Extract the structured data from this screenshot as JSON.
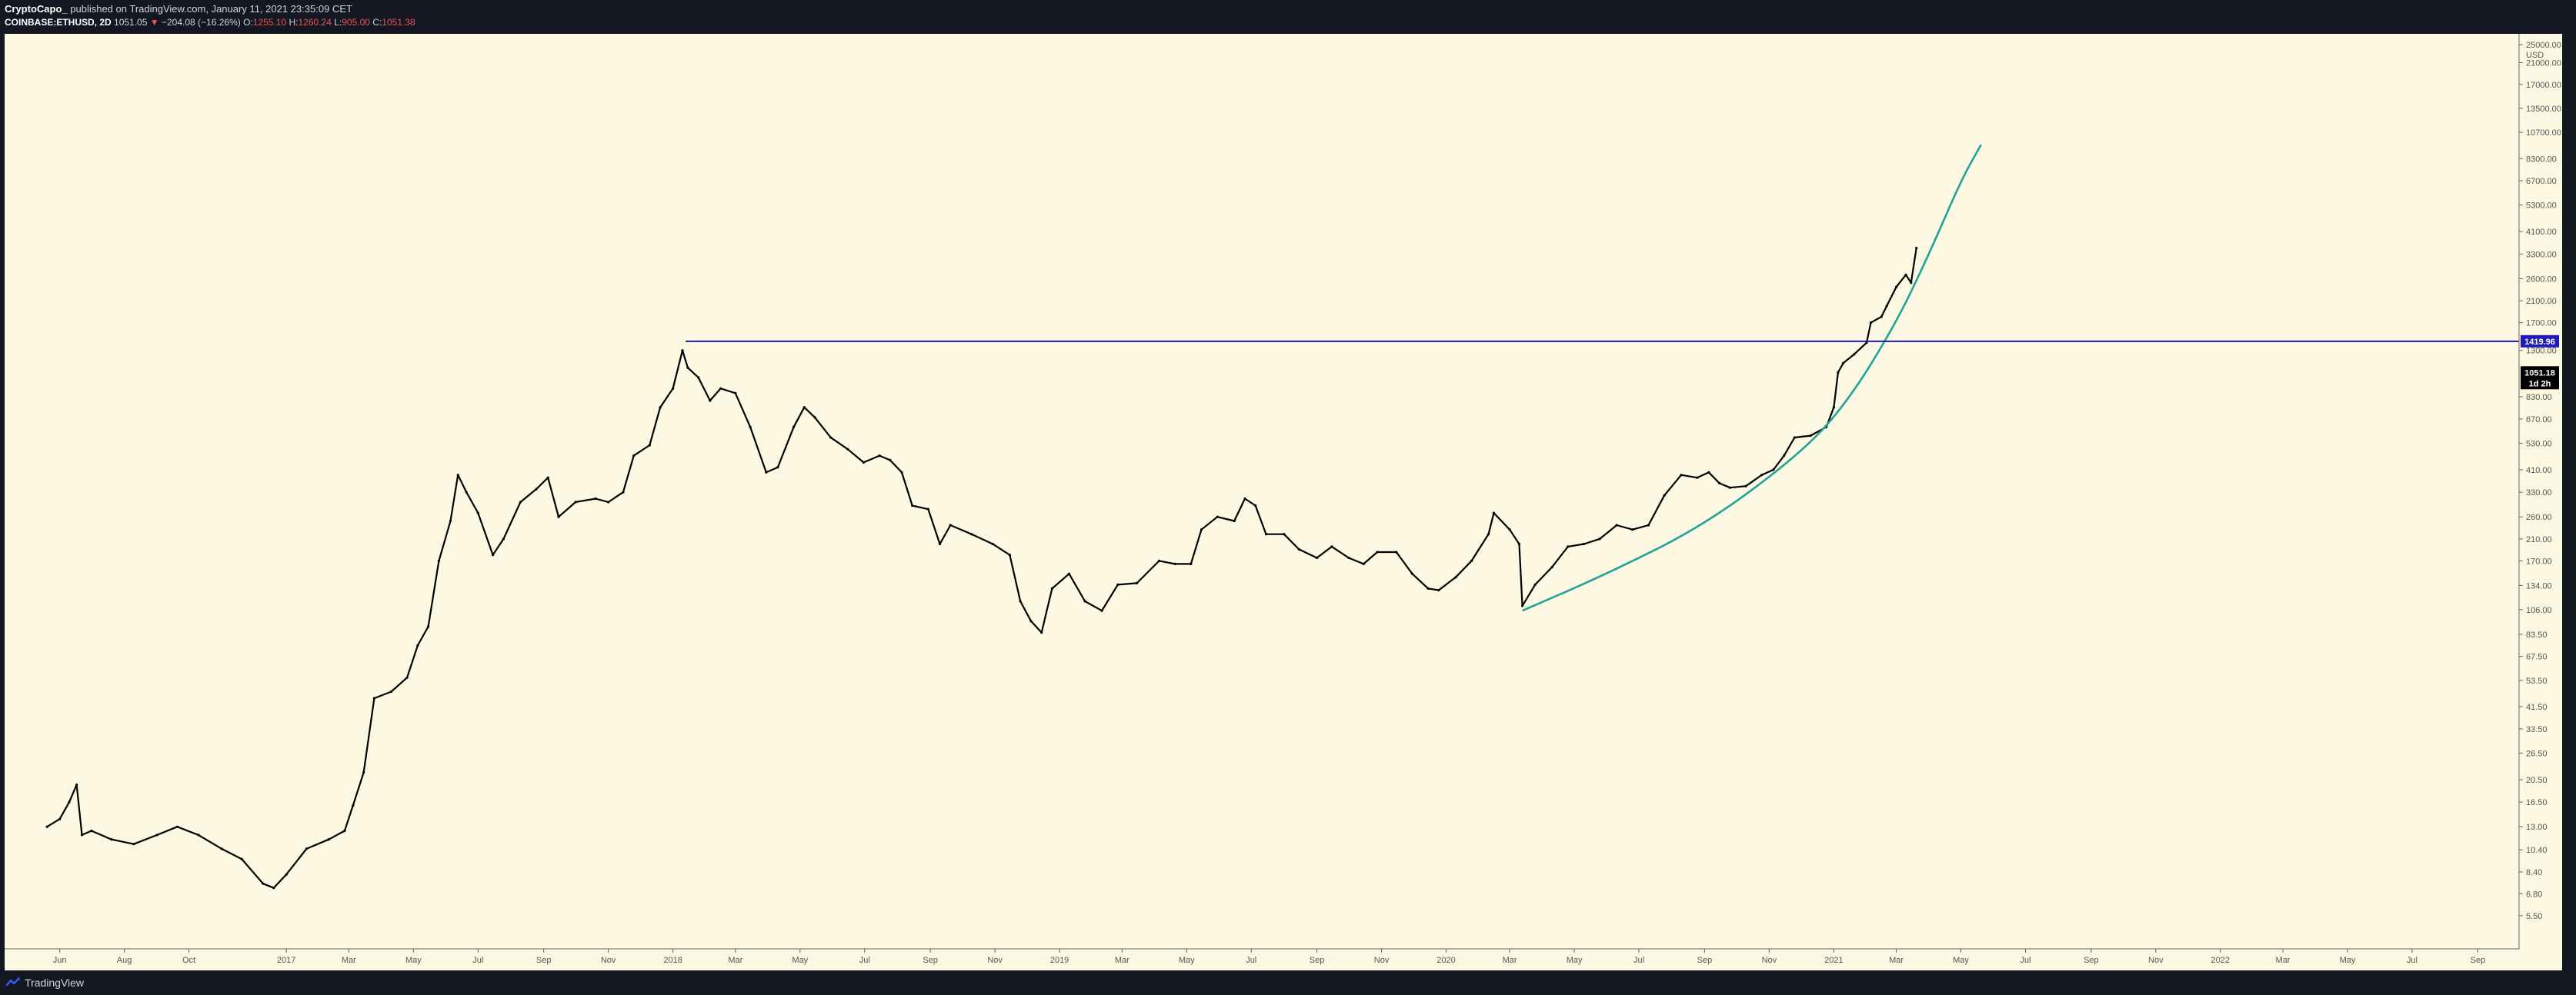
{
  "header": {
    "author": "CryptoCapo_",
    "published": "published on TradingView.com, January 11, 2021 23:35:09 CET",
    "symbol": "COINBASE:ETHUSD, 2D",
    "last": "1051.05",
    "change": "−204.08 (−16.26%)",
    "o_label": "O:",
    "o_value": "1255.10",
    "h_label": "H:",
    "h_value": "1260.24",
    "l_label": "L:",
    "l_value": "905.00",
    "c_label": "C:",
    "c_value": "1051.38"
  },
  "footer": {
    "brand": "TradingView"
  },
  "colors": {
    "background": "#fdf8e1",
    "candle": "#000000",
    "resistance": "#1f1ab8",
    "curve": "#22a39a",
    "price_badge": "#000000",
    "level_badge": "#1f1ab8"
  },
  "chart_data": {
    "type": "line",
    "scale": "log",
    "y_unit": "USD",
    "price_ticks": [
      25000,
      21000,
      17000,
      13500,
      10700,
      8300,
      6700,
      5300,
      4100,
      3300,
      2600,
      2100,
      1700,
      1300,
      830,
      670,
      530,
      410,
      330,
      260,
      210,
      170,
      134,
      106,
      83.5,
      67.5,
      53.5,
      41.5,
      33.5,
      26.5,
      20.5,
      16.5,
      13.0,
      10.4,
      8.4,
      6.8,
      5.5
    ],
    "price_tick_labels": [
      "25000.00",
      "21000.00",
      "17000.00",
      "13500.00",
      "10700.00",
      "8300.00",
      "6700.00",
      "5300.00",
      "4100.00",
      "3300.00",
      "2600.00",
      "2100.00",
      "1700.00",
      "1300.00",
      "830.00",
      "670.00",
      "530.00",
      "410.00",
      "330.00",
      "260.00",
      "210.00",
      "170.00",
      "134.00",
      "106.00",
      "83.50",
      "67.50",
      "53.50",
      "41.50",
      "33.50",
      "26.50",
      "20.50",
      "16.50",
      "13.00",
      "10.40",
      "8.40",
      "6.80",
      "5.50"
    ],
    "time_ticks": [
      {
        "label": "Jun",
        "date": "2016-06-01"
      },
      {
        "label": "Aug",
        "date": "2016-08-01"
      },
      {
        "label": "Oct",
        "date": "2016-10-01"
      },
      {
        "label": "2017",
        "date": "2017-01-01"
      },
      {
        "label": "Mar",
        "date": "2017-03-01"
      },
      {
        "label": "May",
        "date": "2017-05-01"
      },
      {
        "label": "Jul",
        "date": "2017-07-01"
      },
      {
        "label": "Sep",
        "date": "2017-09-01"
      },
      {
        "label": "Nov",
        "date": "2017-11-01"
      },
      {
        "label": "2018",
        "date": "2018-01-01"
      },
      {
        "label": "Mar",
        "date": "2018-03-01"
      },
      {
        "label": "May",
        "date": "2018-05-01"
      },
      {
        "label": "Jul",
        "date": "2018-07-01"
      },
      {
        "label": "Sep",
        "date": "2018-09-01"
      },
      {
        "label": "Nov",
        "date": "2018-11-01"
      },
      {
        "label": "2019",
        "date": "2019-01-01"
      },
      {
        "label": "Mar",
        "date": "2019-03-01"
      },
      {
        "label": "May",
        "date": "2019-05-01"
      },
      {
        "label": "Jul",
        "date": "2019-07-01"
      },
      {
        "label": "Sep",
        "date": "2019-09-01"
      },
      {
        "label": "Nov",
        "date": "2019-11-01"
      },
      {
        "label": "2020",
        "date": "2020-01-01"
      },
      {
        "label": "Mar",
        "date": "2020-03-01"
      },
      {
        "label": "May",
        "date": "2020-05-01"
      },
      {
        "label": "Jul",
        "date": "2020-07-01"
      },
      {
        "label": "Sep",
        "date": "2020-09-01"
      },
      {
        "label": "Nov",
        "date": "2020-11-01"
      },
      {
        "label": "2021",
        "date": "2021-01-01"
      },
      {
        "label": "Mar",
        "date": "2021-03-01"
      },
      {
        "label": "May",
        "date": "2021-05-01"
      },
      {
        "label": "Jul",
        "date": "2021-07-01"
      },
      {
        "label": "Sep",
        "date": "2021-09-01"
      },
      {
        "label": "Nov",
        "date": "2021-11-01"
      },
      {
        "label": "2022",
        "date": "2022-01-01"
      },
      {
        "label": "Mar",
        "date": "2022-03-01"
      },
      {
        "label": "May",
        "date": "2022-05-01"
      },
      {
        "label": "Jul",
        "date": "2022-07-01"
      },
      {
        "label": "Sep",
        "date": "2022-09-01"
      }
    ],
    "series": [
      {
        "points": [
          [
            "2016-05-20",
            13.0
          ],
          [
            "2016-06-01",
            14.0
          ],
          [
            "2016-06-10",
            16.5
          ],
          [
            "2016-06-17",
            19.5
          ],
          [
            "2016-06-22",
            12.0
          ],
          [
            "2016-07-01",
            12.5
          ],
          [
            "2016-07-20",
            11.5
          ],
          [
            "2016-08-10",
            11.0
          ],
          [
            "2016-09-01",
            12.0
          ],
          [
            "2016-09-20",
            13.0
          ],
          [
            "2016-10-10",
            12.0
          ],
          [
            "2016-11-01",
            10.5
          ],
          [
            "2016-11-20",
            9.5
          ],
          [
            "2016-12-10",
            7.5
          ],
          [
            "2016-12-20",
            7.2
          ],
          [
            "2017-01-01",
            8.2
          ],
          [
            "2017-01-20",
            10.5
          ],
          [
            "2017-02-10",
            11.5
          ],
          [
            "2017-02-25",
            12.5
          ],
          [
            "2017-03-05",
            16.0
          ],
          [
            "2017-03-15",
            22.0
          ],
          [
            "2017-03-25",
            45.0
          ],
          [
            "2017-04-10",
            48.0
          ],
          [
            "2017-04-25",
            55.0
          ],
          [
            "2017-05-05",
            75.0
          ],
          [
            "2017-05-15",
            90.0
          ],
          [
            "2017-05-25",
            170.0
          ],
          [
            "2017-06-05",
            250.0
          ],
          [
            "2017-06-12",
            390.0
          ],
          [
            "2017-06-20",
            330.0
          ],
          [
            "2017-07-01",
            270.0
          ],
          [
            "2017-07-15",
            180.0
          ],
          [
            "2017-07-25",
            210.0
          ],
          [
            "2017-08-10",
            300.0
          ],
          [
            "2017-08-25",
            340.0
          ],
          [
            "2017-09-05",
            380.0
          ],
          [
            "2017-09-15",
            260.0
          ],
          [
            "2017-10-01",
            300.0
          ],
          [
            "2017-10-20",
            310.0
          ],
          [
            "2017-11-01",
            300.0
          ],
          [
            "2017-11-15",
            330.0
          ],
          [
            "2017-11-25",
            470.0
          ],
          [
            "2017-12-10",
            520.0
          ],
          [
            "2017-12-20",
            750.0
          ],
          [
            "2018-01-01",
            900.0
          ],
          [
            "2018-01-10",
            1300.0
          ],
          [
            "2018-01-15",
            1100.0
          ],
          [
            "2018-01-25",
            1000.0
          ],
          [
            "2018-02-05",
            800.0
          ],
          [
            "2018-02-15",
            900.0
          ],
          [
            "2018-03-01",
            860.0
          ],
          [
            "2018-03-15",
            620.0
          ],
          [
            "2018-03-30",
            400.0
          ],
          [
            "2018-04-10",
            420.0
          ],
          [
            "2018-04-25",
            620.0
          ],
          [
            "2018-05-05",
            750.0
          ],
          [
            "2018-05-15",
            680.0
          ],
          [
            "2018-05-30",
            560.0
          ],
          [
            "2018-06-15",
            500.0
          ],
          [
            "2018-06-30",
            440.0
          ],
          [
            "2018-07-15",
            470.0
          ],
          [
            "2018-07-25",
            450.0
          ],
          [
            "2018-08-05",
            400.0
          ],
          [
            "2018-08-15",
            290.0
          ],
          [
            "2018-08-30",
            280.0
          ],
          [
            "2018-09-10",
            200.0
          ],
          [
            "2018-09-20",
            240.0
          ],
          [
            "2018-10-10",
            220.0
          ],
          [
            "2018-10-30",
            200.0
          ],
          [
            "2018-11-15",
            180.0
          ],
          [
            "2018-11-25",
            115.0
          ],
          [
            "2018-12-05",
            95.0
          ],
          [
            "2018-12-15",
            85.0
          ],
          [
            "2018-12-25",
            130.0
          ],
          [
            "2019-01-10",
            150.0
          ],
          [
            "2019-01-25",
            115.0
          ],
          [
            "2019-02-10",
            105.0
          ],
          [
            "2019-02-25",
            135.0
          ],
          [
            "2019-03-15",
            137.0
          ],
          [
            "2019-04-05",
            170.0
          ],
          [
            "2019-04-20",
            165.0
          ],
          [
            "2019-05-05",
            165.0
          ],
          [
            "2019-05-15",
            230.0
          ],
          [
            "2019-05-30",
            260.0
          ],
          [
            "2019-06-15",
            250.0
          ],
          [
            "2019-06-25",
            310.0
          ],
          [
            "2019-07-05",
            290.0
          ],
          [
            "2019-07-15",
            220.0
          ],
          [
            "2019-08-01",
            220.0
          ],
          [
            "2019-08-15",
            190.0
          ],
          [
            "2019-09-01",
            175.0
          ],
          [
            "2019-09-15",
            195.0
          ],
          [
            "2019-10-01",
            175.0
          ],
          [
            "2019-10-15",
            165.0
          ],
          [
            "2019-10-28",
            185.0
          ],
          [
            "2019-11-15",
            185.0
          ],
          [
            "2019-11-30",
            150.0
          ],
          [
            "2019-12-15",
            130.0
          ],
          [
            "2019-12-25",
            128.0
          ],
          [
            "2020-01-10",
            145.0
          ],
          [
            "2020-01-25",
            170.0
          ],
          [
            "2020-02-10",
            220.0
          ],
          [
            "2020-02-15",
            270.0
          ],
          [
            "2020-03-01",
            230.0
          ],
          [
            "2020-03-10",
            200.0
          ],
          [
            "2020-03-13",
            110.0
          ],
          [
            "2020-03-25",
            135.0
          ],
          [
            "2020-04-10",
            160.0
          ],
          [
            "2020-04-25",
            195.0
          ],
          [
            "2020-05-10",
            200.0
          ],
          [
            "2020-05-25",
            210.0
          ],
          [
            "2020-06-10",
            240.0
          ],
          [
            "2020-06-25",
            230.0
          ],
          [
            "2020-07-10",
            240.0
          ],
          [
            "2020-07-25",
            320.0
          ],
          [
            "2020-08-10",
            390.0
          ],
          [
            "2020-08-25",
            380.0
          ],
          [
            "2020-09-05",
            400.0
          ],
          [
            "2020-09-15",
            360.0
          ],
          [
            "2020-09-25",
            345.0
          ],
          [
            "2020-10-10",
            350.0
          ],
          [
            "2020-10-25",
            390.0
          ],
          [
            "2020-11-05",
            410.0
          ],
          [
            "2020-11-15",
            470.0
          ],
          [
            "2020-11-25",
            560.0
          ],
          [
            "2020-12-10",
            570.0
          ],
          [
            "2020-12-25",
            620.0
          ],
          [
            "2021-01-01",
            750.0
          ],
          [
            "2021-01-05",
            1050.0
          ],
          [
            "2021-01-10",
            1150.0
          ],
          [
            "2021-01-20",
            1250.0
          ],
          [
            "2021-02-01",
            1400.0
          ],
          [
            "2021-02-05",
            1700.0
          ],
          [
            "2021-02-15",
            1800.0
          ],
          [
            "2021-02-20",
            2000.0
          ],
          [
            "2021-03-01",
            2400.0
          ],
          [
            "2021-03-10",
            2700.0
          ],
          [
            "2021-03-15",
            2500.0
          ],
          [
            "2021-03-20",
            3500.0
          ]
        ]
      },
      {
        "points": [
          [
            "2020-03-13",
            105.0
          ],
          [
            "2020-06-01",
            150.0
          ],
          [
            "2020-09-01",
            240.0
          ],
          [
            "2020-12-01",
            480.0
          ],
          [
            "2021-01-15",
            800.0
          ],
          [
            "2021-03-01",
            1700.0
          ],
          [
            "2021-04-01",
            3300.0
          ],
          [
            "2021-05-01",
            6700.0
          ],
          [
            "2021-05-20",
            9500.0
          ]
        ]
      }
    ],
    "horizontal_lines": [
      {
        "price": 1419.96,
        "label": "1419.96",
        "from": "2018-01-13"
      }
    ],
    "last_price": {
      "price": 1051.18,
      "label": "1051.18",
      "countdown": "1d 2h"
    }
  }
}
